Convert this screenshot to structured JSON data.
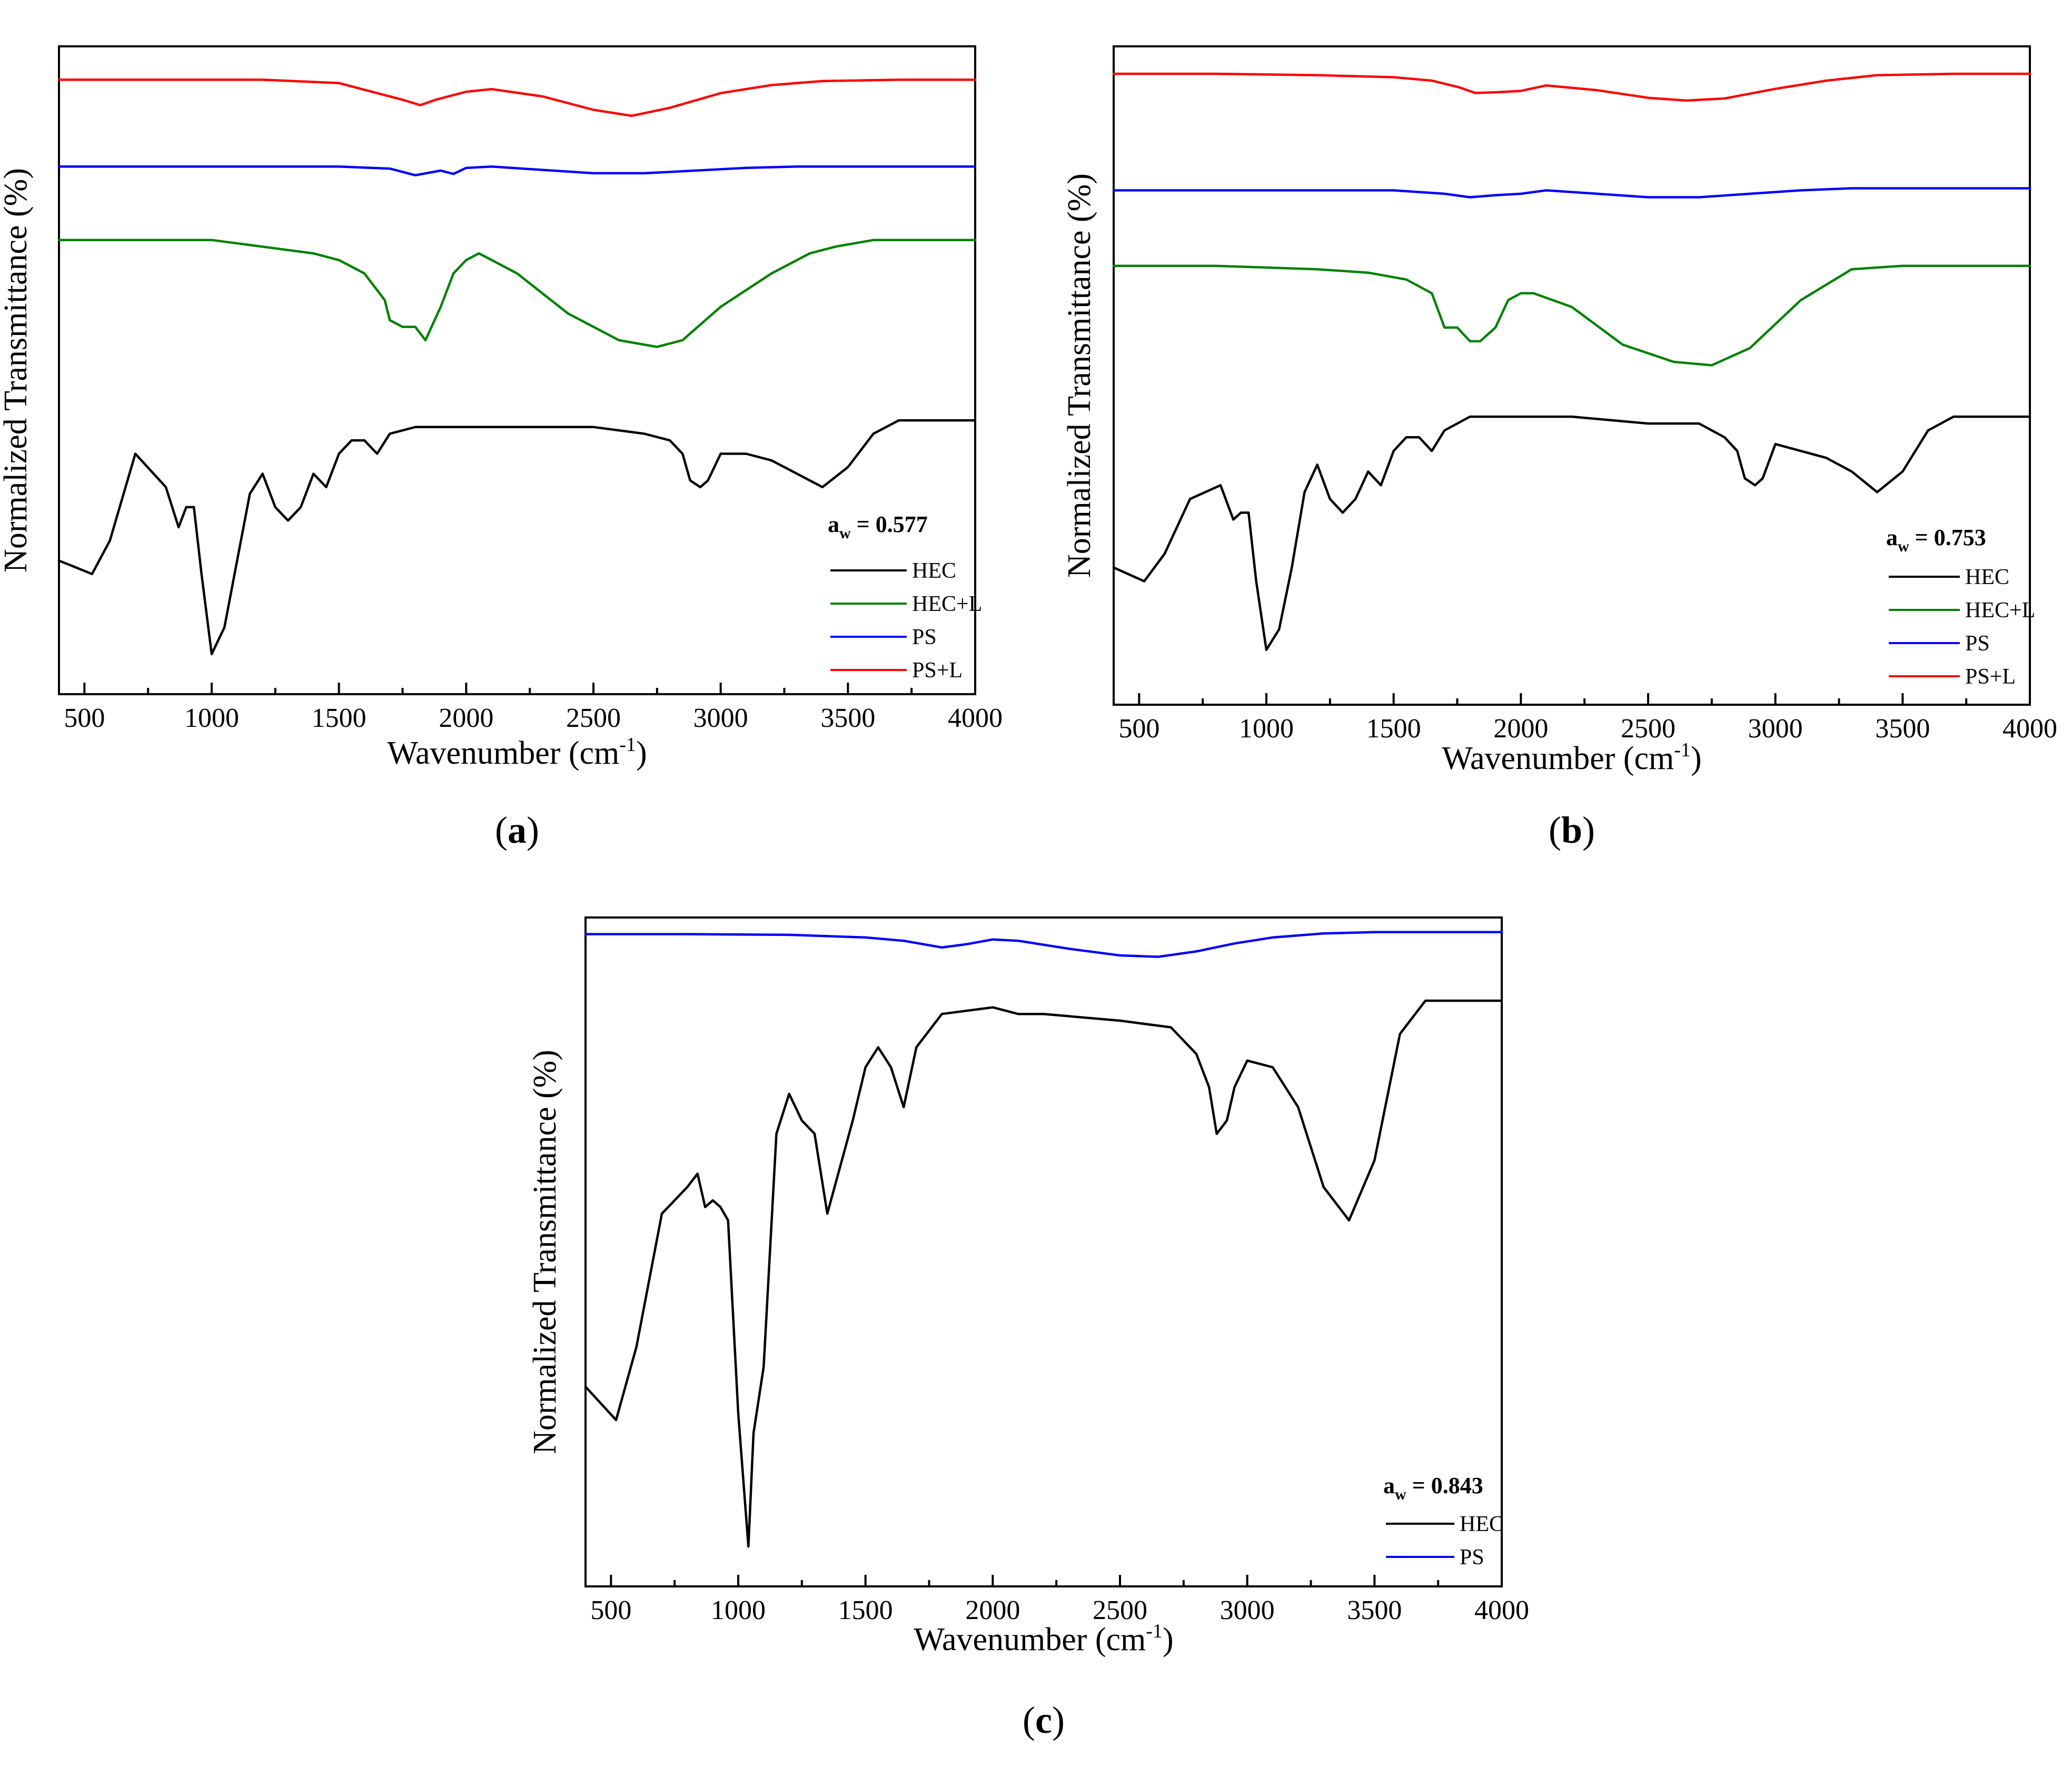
{
  "colors": {
    "HEC": "#000000",
    "HEC+L": "#008000",
    "PS": "#0000ff",
    "PS+L": "#ff0000"
  },
  "chart_data": [
    {
      "panel": "a",
      "panel_label": "a",
      "type": "line",
      "xlabel": "Wavenumber",
      "xlabel_unit_base": "cm",
      "xlabel_unit_exp": "-1",
      "ylabel": "Normalized Transmittance (%)",
      "xlim": [
        400,
        4000
      ],
      "ylim": [
        0,
        100
      ],
      "xticks": [
        500,
        1000,
        1500,
        2000,
        2500,
        3000,
        3500,
        4000
      ],
      "legend": {
        "title_base": "a",
        "title_sub": "w",
        "title_value": " = 0.577",
        "position": "bottom-right",
        "entries": [
          "HEC",
          "HEC+L",
          "PS",
          "PS+L"
        ]
      },
      "series": [
        {
          "name": "HEC",
          "color": "#000000",
          "x": [
            400,
            530,
            600,
            700,
            820,
            870,
            900,
            930,
            960,
            1000,
            1050,
            1100,
            1150,
            1200,
            1250,
            1300,
            1350,
            1400,
            1450,
            1500,
            1550,
            1600,
            1650,
            1700,
            1800,
            2000,
            2200,
            2500,
            2700,
            2800,
            2850,
            2880,
            2920,
            2950,
            3000,
            3100,
            3200,
            3300,
            3400,
            3500,
            3600,
            3700,
            3800,
            4000
          ],
          "y": [
            22,
            20,
            25,
            38,
            33,
            27,
            30,
            30,
            20,
            8,
            12,
            22,
            32,
            35,
            30,
            28,
            30,
            35,
            33,
            38,
            40,
            40,
            38,
            41,
            42,
            42,
            42,
            42,
            41,
            40,
            38,
            34,
            33,
            34,
            38,
            38,
            37,
            35,
            33,
            36,
            41,
            43,
            43,
            43
          ]
        },
        {
          "name": "HEC+L",
          "color": "#008000",
          "x": [
            400,
            600,
            800,
            1000,
            1200,
            1400,
            1500,
            1600,
            1680,
            1700,
            1750,
            1800,
            1840,
            1900,
            1950,
            2000,
            2050,
            2100,
            2200,
            2400,
            2600,
            2750,
            2850,
            3000,
            3200,
            3350,
            3450,
            3600,
            4000
          ],
          "y": [
            70,
            70,
            70,
            70,
            69,
            68,
            67,
            65,
            61,
            58,
            57,
            57,
            55,
            60,
            65,
            67,
            68,
            67,
            65,
            59,
            55,
            54,
            55,
            60,
            65,
            68,
            69,
            70,
            70
          ]
        },
        {
          "name": "PS",
          "color": "#0000ff",
          "x": [
            400,
            800,
            1200,
            1500,
            1700,
            1800,
            1900,
            1950,
            2000,
            2100,
            2300,
            2500,
            2700,
            2900,
            3100,
            3300,
            3500,
            3700,
            4000
          ],
          "y": [
            81,
            81,
            81,
            81,
            80.7,
            79.7,
            80.4,
            79.9,
            80.8,
            81,
            80.5,
            80,
            80,
            80.4,
            80.8,
            81,
            81,
            81,
            81
          ]
        },
        {
          "name": "PS+L",
          "color": "#ff0000",
          "x": [
            400,
            800,
            1200,
            1500,
            1650,
            1750,
            1820,
            1880,
            2000,
            2100,
            2300,
            2500,
            2650,
            2800,
            3000,
            3200,
            3400,
            3700,
            4000
          ],
          "y": [
            94,
            94,
            94,
            93.5,
            92,
            91,
            90.2,
            91,
            92.2,
            92.6,
            91.5,
            89.5,
            88.6,
            89.8,
            92,
            93.2,
            93.8,
            94,
            94
          ]
        }
      ]
    },
    {
      "panel": "b",
      "panel_label": "b",
      "type": "line",
      "xlabel": "Wavenumber",
      "xlabel_unit_base": "cm",
      "xlabel_unit_exp": "-1",
      "ylabel": "Normalized Transmittance (%)",
      "xlim": [
        400,
        4000
      ],
      "ylim": [
        0,
        100
      ],
      "xticks": [
        500,
        1000,
        1500,
        2000,
        2500,
        3000,
        3500,
        4000
      ],
      "legend": {
        "title_base": "a",
        "title_sub": "w",
        "title_value": " = 0.753",
        "position": "bottom-right",
        "entries": [
          "HEC",
          "HEC+L",
          "PS",
          "PS+L"
        ]
      },
      "series": [
        {
          "name": "HEC",
          "color": "#000000",
          "x": [
            400,
            520,
            600,
            700,
            820,
            870,
            900,
            930,
            960,
            1000,
            1050,
            1100,
            1150,
            1200,
            1250,
            1300,
            1350,
            1400,
            1450,
            1500,
            1550,
            1600,
            1650,
            1700,
            1800,
            2000,
            2200,
            2500,
            2700,
            2800,
            2850,
            2880,
            2920,
            2950,
            3000,
            3100,
            3200,
            3300,
            3400,
            3500,
            3600,
            3700,
            3800,
            4000
          ],
          "y": [
            22,
            20,
            24,
            32,
            34,
            29,
            30,
            30,
            20,
            10,
            13,
            22,
            33,
            37,
            32,
            30,
            32,
            36,
            34,
            39,
            41,
            41,
            39,
            42,
            44,
            44,
            44,
            43,
            43,
            41,
            39,
            35,
            34,
            35,
            40,
            39,
            38,
            36,
            33,
            36,
            42,
            44,
            44,
            44
          ]
        },
        {
          "name": "HEC+L",
          "color": "#008000",
          "x": [
            400,
            800,
            1200,
            1400,
            1550,
            1650,
            1680,
            1700,
            1750,
            1800,
            1840,
            1900,
            1950,
            2000,
            2050,
            2200,
            2400,
            2600,
            2750,
            2900,
            3100,
            3300,
            3500,
            3600,
            4000
          ],
          "y": [
            66,
            66,
            65.5,
            65,
            64,
            62,
            59,
            57,
            57,
            55,
            55,
            57,
            61,
            62,
            62,
            60,
            54.5,
            52,
            51.5,
            54,
            61,
            65.5,
            66,
            66,
            66
          ]
        },
        {
          "name": "PS",
          "color": "#0000ff",
          "x": [
            400,
            800,
            1200,
            1500,
            1700,
            1800,
            1900,
            2000,
            2100,
            2300,
            2500,
            2700,
            2900,
            3100,
            3300,
            3500,
            3700,
            4000
          ],
          "y": [
            77,
            77,
            77,
            77,
            76.5,
            76,
            76.3,
            76.5,
            77,
            76.5,
            76,
            76,
            76.5,
            77,
            77.3,
            77.3,
            77.3,
            77.3
          ]
        },
        {
          "name": "PS+L",
          "color": "#ff0000",
          "x": [
            400,
            800,
            1200,
            1500,
            1650,
            1760,
            1820,
            1900,
            2000,
            2100,
            2300,
            2500,
            2650,
            2800,
            3000,
            3200,
            3400,
            3700,
            4000
          ],
          "y": [
            94,
            94,
            93.8,
            93.5,
            93,
            92,
            91.2,
            91.3,
            91.5,
            92.3,
            91.6,
            90.5,
            90.1,
            90.4,
            91.8,
            93,
            93.8,
            94,
            94
          ]
        }
      ]
    },
    {
      "panel": "c",
      "panel_label": "c",
      "type": "line",
      "xlabel": "Wavenumber",
      "xlabel_unit_base": "cm",
      "xlabel_unit_exp": "-1",
      "ylabel": "Normalized Transmittance (%)",
      "xlim": [
        400,
        4000
      ],
      "ylim": [
        0,
        100
      ],
      "xticks": [
        500,
        1000,
        1500,
        2000,
        2500,
        3000,
        3500,
        4000
      ],
      "legend": {
        "title_base": "a",
        "title_sub": "w",
        "title_value": " = 0.843",
        "position": "bottom-right",
        "entries": [
          "HEC",
          "PS"
        ]
      },
      "series": [
        {
          "name": "HEC",
          "color": "#000000",
          "x": [
            400,
            520,
            600,
            700,
            800,
            840,
            870,
            900,
            930,
            960,
            1000,
            1040,
            1060,
            1100,
            1150,
            1200,
            1250,
            1300,
            1350,
            1400,
            1450,
            1500,
            1550,
            1600,
            1650,
            1700,
            1800,
            2000,
            2100,
            2200,
            2500,
            2700,
            2800,
            2850,
            2880,
            2920,
            2950,
            3000,
            3100,
            3200,
            3300,
            3400,
            3500,
            3600,
            3700,
            4000
          ],
          "y": [
            32,
            27,
            38,
            58,
            62,
            64,
            59,
            60,
            59,
            57,
            28,
            8,
            25,
            35,
            70,
            76,
            72,
            70,
            58,
            65,
            72,
            80,
            83,
            80,
            74,
            83,
            88,
            89,
            88,
            88,
            87,
            86,
            82,
            77,
            70,
            72,
            77,
            81,
            80,
            74,
            62,
            57,
            66,
            85,
            90,
            90
          ]
        },
        {
          "name": "PS",
          "color": "#0000ff",
          "x": [
            400,
            800,
            1200,
            1500,
            1650,
            1800,
            1900,
            2000,
            2100,
            2300,
            2500,
            2650,
            2800,
            2950,
            3100,
            3300,
            3500,
            3700,
            4000
          ],
          "y": [
            100,
            100,
            99.9,
            99.5,
            99,
            98,
            98.5,
            99.2,
            99,
            97.8,
            96.8,
            96.6,
            97.4,
            98.6,
            99.5,
            100.1,
            100.3,
            100.3,
            100.3
          ]
        }
      ]
    }
  ]
}
